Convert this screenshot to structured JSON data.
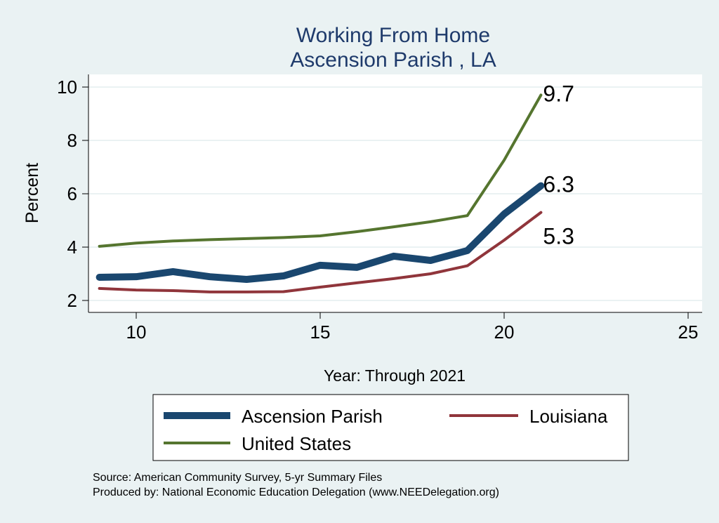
{
  "chart_data": {
    "type": "line",
    "title": "Working From Home",
    "subtitle": "Ascension Parish , LA",
    "xlabel": "Year: Through 2021",
    "ylabel": "Percent",
    "xlim": [
      8.8,
      25.4
    ],
    "ylim": [
      1.6,
      10.4
    ],
    "xticks": [
      10,
      15,
      20,
      25
    ],
    "yticks": [
      2,
      4,
      6,
      8,
      10
    ],
    "grid": true,
    "legend_position": "bottom",
    "x": [
      9,
      10,
      11,
      12,
      13,
      14,
      15,
      16,
      17,
      18,
      19,
      20,
      21
    ],
    "series": [
      {
        "name": "Ascension Parish",
        "color": "#1a476f",
        "values": [
          2.87,
          2.89,
          3.08,
          2.89,
          2.79,
          2.92,
          3.32,
          3.24,
          3.66,
          3.5,
          3.87,
          5.24,
          6.3
        ],
        "end_label": "6.3"
      },
      {
        "name": "Louisiana",
        "color": "#90353b",
        "values": [
          2.45,
          2.39,
          2.37,
          2.32,
          2.32,
          2.33,
          2.5,
          2.66,
          2.82,
          3.0,
          3.3,
          4.26,
          5.3
        ],
        "end_label": "5.3"
      },
      {
        "name": "United States",
        "color": "#55752f",
        "values": [
          4.03,
          4.15,
          4.23,
          4.28,
          4.32,
          4.36,
          4.42,
          4.58,
          4.76,
          4.95,
          5.18,
          7.26,
          9.7
        ],
        "end_label": "9.7"
      }
    ]
  },
  "notes": [
    "Source: American Community Survey, 5-yr Summary Files",
    "Produced by: National Economic Education Delegation (www.NEEDelegation.org)"
  ]
}
